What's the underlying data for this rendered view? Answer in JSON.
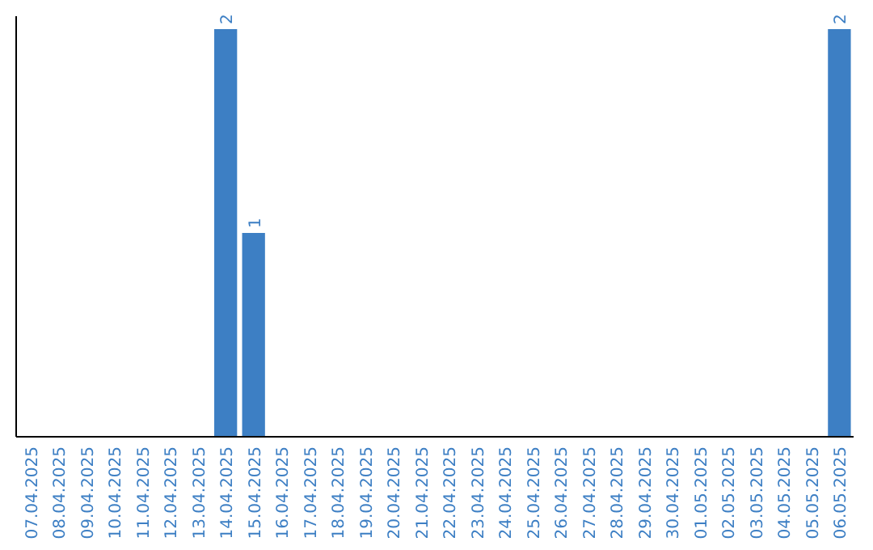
{
  "chart_data": {
    "type": "bar",
    "categories": [
      "07.04.2025",
      "08.04.2025",
      "09.04.2025",
      "10.04.2025",
      "11.04.2025",
      "12.04.2025",
      "13.04.2025",
      "14.04.2025",
      "15.04.2025",
      "16.04.2025",
      "17.04.2025",
      "18.04.2025",
      "19.04.2025",
      "20.04.2025",
      "21.04.2025",
      "22.04.2025",
      "23.04.2025",
      "24.04.2025",
      "25.04.2025",
      "26.04.2025",
      "27.04.2025",
      "28.04.2025",
      "29.04.2025",
      "30.04.2025",
      "01.05.2025",
      "02.05.2025",
      "03.05.2025",
      "04.05.2025",
      "05.05.2025",
      "06.05.2025"
    ],
    "values": [
      0,
      0,
      0,
      0,
      0,
      0,
      0,
      2,
      1,
      0,
      0,
      0,
      0,
      0,
      0,
      0,
      0,
      0,
      0,
      0,
      0,
      0,
      0,
      0,
      0,
      0,
      0,
      0,
      0,
      2
    ],
    "value_labels": [
      null,
      null,
      null,
      null,
      null,
      null,
      null,
      "2",
      "1",
      null,
      null,
      null,
      null,
      null,
      null,
      null,
      null,
      null,
      null,
      null,
      null,
      null,
      null,
      null,
      null,
      null,
      null,
      null,
      null,
      "2"
    ],
    "color": "#3d7fc4"
  }
}
